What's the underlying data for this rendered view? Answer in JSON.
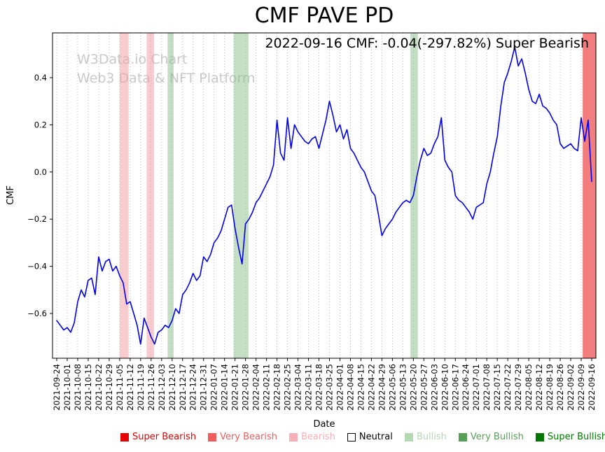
{
  "title": "CMF PAVE PD",
  "annotation": "2022-09-16 CMF: -0.04(-297.82%) Super Bearish",
  "watermark": {
    "line1": "W3Data.io Chart",
    "line2": "Web3 Data & NFT Platform"
  },
  "chart_data": {
    "type": "line",
    "title": "CMF PAVE PD",
    "xlabel": "Date",
    "ylabel": "CMF",
    "line_color": "#0000ee",
    "grid_color": "#aaaaaa",
    "grid": "vertical-dotted",
    "ylim": [
      -0.79,
      0.59
    ],
    "yticks": [
      0.4,
      0.2,
      0.0,
      -0.2,
      -0.4,
      -0.6
    ],
    "x_start_date": "2021-09-24",
    "x_end_date": "2022-09-16",
    "tick_labels": [
      "2021-09-24",
      "2021-10-01",
      "2021-10-08",
      "2021-10-15",
      "2021-10-22",
      "2021-10-29",
      "2021-11-05",
      "2021-11-12",
      "2021-11-19",
      "2021-11-26",
      "2021-12-03",
      "2021-12-10",
      "2021-12-17",
      "2021-12-24",
      "2021-12-31",
      "2022-01-07",
      "2022-01-14",
      "2022-01-21",
      "2022-01-28",
      "2022-02-04",
      "2022-02-11",
      "2022-02-18",
      "2022-02-25",
      "2022-03-04",
      "2022-03-11",
      "2022-03-18",
      "2022-03-25",
      "2022-04-01",
      "2022-04-08",
      "2022-04-15",
      "2022-04-22",
      "2022-04-29",
      "2022-05-06",
      "2022-05-13",
      "2022-05-20",
      "2022-05-27",
      "2022-06-03",
      "2022-06-10",
      "2022-06-17",
      "2022-06-24",
      "2022-07-01",
      "2022-07-08",
      "2022-07-15",
      "2022-07-22",
      "2022-07-29",
      "2022-08-05",
      "2022-08-12",
      "2022-08-19",
      "2022-08-26",
      "2022-09-02",
      "2022-09-09",
      "2022-09-16"
    ],
    "values": [
      -0.63,
      -0.65,
      -0.67,
      -0.66,
      -0.68,
      -0.64,
      -0.55,
      -0.5,
      -0.53,
      -0.46,
      -0.45,
      -0.52,
      -0.36,
      -0.42,
      -0.38,
      -0.37,
      -0.42,
      -0.4,
      -0.44,
      -0.47,
      -0.56,
      -0.55,
      -0.6,
      -0.65,
      -0.73,
      -0.62,
      -0.66,
      -0.7,
      -0.73,
      -0.68,
      -0.67,
      -0.65,
      -0.66,
      -0.63,
      -0.58,
      -0.6,
      -0.52,
      -0.5,
      -0.47,
      -0.43,
      -0.46,
      -0.44,
      -0.36,
      -0.38,
      -0.35,
      -0.3,
      -0.28,
      -0.25,
      -0.2,
      -0.15,
      -0.14,
      -0.24,
      -0.32,
      -0.39,
      -0.22,
      -0.2,
      -0.17,
      -0.13,
      -0.11,
      -0.08,
      -0.05,
      -0.02,
      0.03,
      0.22,
      0.08,
      0.05,
      0.23,
      0.1,
      0.2,
      0.17,
      0.15,
      0.13,
      0.12,
      0.14,
      0.15,
      0.1,
      0.16,
      0.22,
      0.3,
      0.24,
      0.17,
      0.2,
      0.14,
      0.18,
      0.1,
      0.08,
      0.05,
      0.02,
      0.0,
      -0.04,
      -0.08,
      -0.1,
      -0.18,
      -0.27,
      -0.24,
      -0.22,
      -0.2,
      -0.17,
      -0.15,
      -0.13,
      -0.12,
      -0.13,
      -0.1,
      -0.02,
      0.05,
      0.1,
      0.07,
      0.08,
      0.12,
      0.15,
      0.23,
      0.05,
      0.02,
      0.0,
      -0.1,
      -0.12,
      -0.13,
      -0.15,
      -0.17,
      -0.2,
      -0.15,
      -0.14,
      -0.13,
      -0.05,
      0.0,
      0.08,
      0.15,
      0.28,
      0.38,
      0.42,
      0.47,
      0.53,
      0.45,
      0.48,
      0.42,
      0.35,
      0.3,
      0.29,
      0.33,
      0.28,
      0.27,
      0.25,
      0.22,
      0.2,
      0.12,
      0.1,
      0.11,
      0.12,
      0.1,
      0.09,
      0.23,
      0.13,
      0.22,
      -0.04
    ],
    "bands": [
      {
        "start": "2021-11-05",
        "end": "2021-11-11",
        "type": "Bearish",
        "color": "#f2a0a8",
        "opacity": 0.55
      },
      {
        "start": "2021-11-23",
        "end": "2021-11-28",
        "type": "Bearish",
        "color": "#f2a0a8",
        "opacity": 0.55
      },
      {
        "start": "2021-12-07",
        "end": "2021-12-11",
        "type": "Bullish",
        "color": "#8cc08c",
        "opacity": 0.5
      },
      {
        "start": "2022-01-20",
        "end": "2022-01-30",
        "type": "Bullish",
        "color": "#8cc08c",
        "opacity": 0.5
      },
      {
        "start": "2022-05-18",
        "end": "2022-05-23",
        "type": "Bullish",
        "color": "#8cc08c",
        "opacity": 0.5
      },
      {
        "start": "2022-09-10",
        "end": "2022-09-16",
        "type": "Very Bearish",
        "color": "#ee4444",
        "opacity": 0.7
      }
    ],
    "legend_position": "bottom"
  },
  "legend": {
    "items": [
      {
        "label": "Super Bearish",
        "swatch": "#e60000",
        "edge": "#e60000",
        "text_color": "#e60000"
      },
      {
        "label": "Very Bearish",
        "swatch": "#f05c5c",
        "edge": "#f05c5c",
        "text_color": "#f05c5c"
      },
      {
        "label": "Bearish",
        "swatch": "#f6b0b7",
        "edge": "#f6b0b7",
        "text_color": "#f6b0b7"
      },
      {
        "label": "Neutral",
        "swatch": "#ffffff",
        "edge": "#000000",
        "text_color": "#000000"
      },
      {
        "label": "Bullish",
        "swatch": "#b4d7b4",
        "edge": "#b4d7b4",
        "text_color": "#b4d7b4"
      },
      {
        "label": "Very Bullish",
        "swatch": "#55a055",
        "edge": "#55a055",
        "text_color": "#55a055"
      },
      {
        "label": "Super Bullish",
        "swatch": "#007800",
        "edge": "#007800",
        "text_color": "#007800"
      }
    ]
  }
}
